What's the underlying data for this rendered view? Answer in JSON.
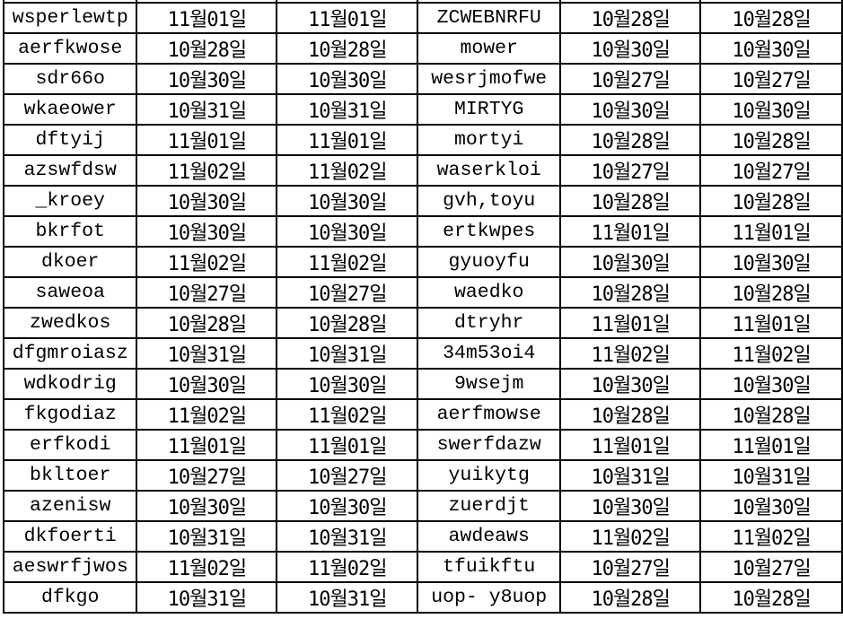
{
  "rows": [
    [
      "wsperlewtp",
      "11월01일",
      "11월01일",
      "ZCWEBNRFU",
      "10월28일",
      "10월28일"
    ],
    [
      "aerfkwose",
      "10월28일",
      "10월28일",
      "mower",
      "10월30일",
      "10월30일"
    ],
    [
      "sdr66o",
      "10월30일",
      "10월30일",
      "wesrjmofwe",
      "10월27일",
      "10월27일"
    ],
    [
      "wkaeower",
      "10월31일",
      "10월31일",
      "MIRTYG",
      "10월30일",
      "10월30일"
    ],
    [
      "dftyij",
      "11월01일",
      "11월01일",
      "mortyi",
      "10월28일",
      "10월28일"
    ],
    [
      "azswfdsw",
      "11월02일",
      "11월02일",
      "waserkloi",
      "10월27일",
      "10월27일"
    ],
    [
      "_kroey",
      "10월30일",
      "10월30일",
      "gvh,toyu",
      "10월28일",
      "10월28일"
    ],
    [
      "bkrfot",
      "10월30일",
      "10월30일",
      "ertkwpes",
      "11월01일",
      "11월01일"
    ],
    [
      "dkoer",
      "11월02일",
      "11월02일",
      "gyuoyfu",
      "10월30일",
      "10월30일"
    ],
    [
      "saweoa",
      "10월27일",
      "10월27일",
      "waedko",
      "10월28일",
      "10월28일"
    ],
    [
      "zwedkos",
      "10월28일",
      "10월28일",
      "dtryhr",
      "11월01일",
      "11월01일"
    ],
    [
      "dfgmroiasz",
      "10월31일",
      "10월31일",
      "34m53oi4",
      "11월02일",
      "11월02일"
    ],
    [
      "wdkodrig",
      "10월30일",
      "10월30일",
      "9wsejm",
      "10월30일",
      "10월30일"
    ],
    [
      "fkgodiaz",
      "11월02일",
      "11월02일",
      "aerfmowse",
      "10월28일",
      "10월28일"
    ],
    [
      "erfkodi",
      "11월01일",
      "11월01일",
      "swerfdazw",
      "11월01일",
      "11월01일"
    ],
    [
      "bkltoer",
      "10월27일",
      "10월27일",
      "yuikytg",
      "10월31일",
      "10월31일"
    ],
    [
      "azenisw",
      "10월30일",
      "10월30일",
      "zuerdjt",
      "10월30일",
      "10월30일"
    ],
    [
      "dkfoerti",
      "10월31일",
      "10월31일",
      "awdeaws",
      "11월02일",
      "11월02일"
    ],
    [
      "aeswrfjwos",
      "11월02일",
      "11월02일",
      "tfuikftu",
      "10월27일",
      "10월27일"
    ],
    [
      "dfkgo",
      "10월31일",
      "10월31일",
      "uop- y8uop",
      "10월28일",
      "10월28일"
    ]
  ]
}
